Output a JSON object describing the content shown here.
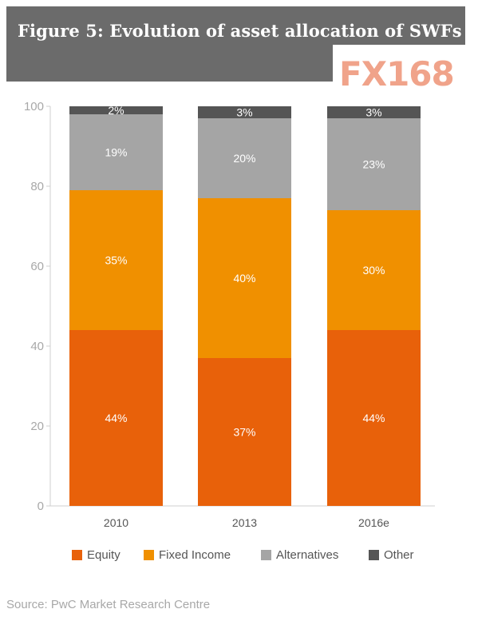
{
  "header": {
    "title": "Figure 5: Evolution of asset allocation of SWFs"
  },
  "logo": {
    "text": "FX168"
  },
  "source": "Source: PwC Market Research Centre",
  "chart_data": {
    "type": "bar",
    "stacked": true,
    "categories": [
      "2010",
      "2013",
      "2016e"
    ],
    "ylim": [
      0,
      100
    ],
    "yticks": [
      "0",
      "20",
      "40",
      "60",
      "80",
      "100"
    ],
    "legend_position": "bottom",
    "series": [
      {
        "name": "Equity",
        "color": "#e8610a",
        "values": [
          44,
          37,
          44
        ],
        "labels": [
          "44%",
          "37%",
          "44%"
        ]
      },
      {
        "name": "Fixed Income",
        "color": "#f09000",
        "values": [
          35,
          40,
          30
        ],
        "labels": [
          "35%",
          "40%",
          "30%"
        ]
      },
      {
        "name": "Alternatives",
        "color": "#a5a5a5",
        "values": [
          19,
          20,
          23
        ],
        "labels": [
          "19%",
          "20%",
          "23%"
        ]
      },
      {
        "name": "Other",
        "color": "#555555",
        "values": [
          2,
          3,
          3
        ],
        "labels": [
          "2%",
          "3%",
          "3%"
        ]
      }
    ]
  }
}
